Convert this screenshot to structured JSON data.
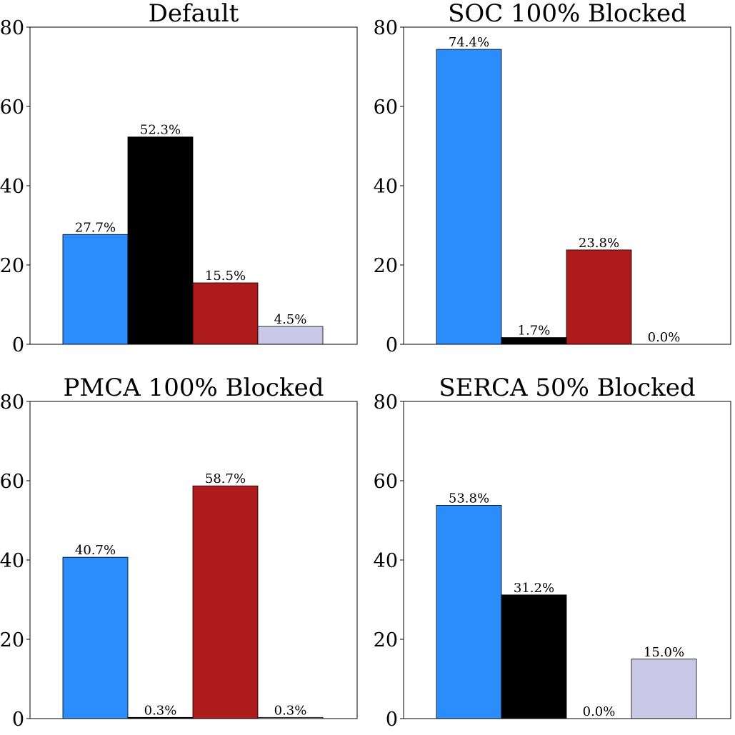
{
  "colors": {
    "blue": "#2b8cfb",
    "black": "#000000",
    "red": "#ae1b1b",
    "lavender": "#c9c8e6"
  },
  "chart_data": [
    {
      "type": "bar",
      "title": "Default",
      "xlabel": "",
      "ylabel": "",
      "ylim": [
        0,
        80
      ],
      "yticks": [
        "0",
        "20",
        "40",
        "60",
        "80"
      ],
      "categories": [
        "",
        "",
        "",
        ""
      ],
      "values": [
        27.7,
        52.3,
        15.5,
        4.5
      ],
      "labels": [
        "27.7%",
        "52.3%",
        "15.5%",
        "4.5%"
      ],
      "bar_colors": [
        "#2b8cfb",
        "#000000",
        "#ae1b1b",
        "#c9c8e6"
      ],
      "grid": false
    },
    {
      "type": "bar",
      "title": "SOC 100% Blocked",
      "xlabel": "",
      "ylabel": "",
      "ylim": [
        0,
        80
      ],
      "yticks": [
        "0",
        "20",
        "40",
        "60",
        "80"
      ],
      "categories": [
        "",
        "",
        "",
        ""
      ],
      "values": [
        74.4,
        1.7,
        23.8,
        0.0
      ],
      "labels": [
        "74.4%",
        "1.7%",
        "23.8%",
        "0.0%"
      ],
      "bar_colors": [
        "#2b8cfb",
        "#000000",
        "#ae1b1b",
        "#c9c8e6"
      ],
      "grid": false
    },
    {
      "type": "bar",
      "title": "PMCA 100% Blocked",
      "xlabel": "",
      "ylabel": "",
      "ylim": [
        0,
        80
      ],
      "yticks": [
        "0",
        "20",
        "40",
        "60",
        "80"
      ],
      "categories": [
        "",
        "",
        "",
        ""
      ],
      "values": [
        40.7,
        0.3,
        58.7,
        0.3
      ],
      "labels": [
        "40.7%",
        "0.3%",
        "58.7%",
        "0.3%"
      ],
      "bar_colors": [
        "#2b8cfb",
        "#000000",
        "#ae1b1b",
        "#c9c8e6"
      ],
      "grid": false
    },
    {
      "type": "bar",
      "title": "SERCA 50% Blocked",
      "xlabel": "",
      "ylabel": "",
      "ylim": [
        0,
        80
      ],
      "yticks": [
        "0",
        "20",
        "40",
        "60",
        "80"
      ],
      "categories": [
        "",
        "",
        "",
        ""
      ],
      "values": [
        53.8,
        31.2,
        0.0,
        15.0
      ],
      "labels": [
        "53.8%",
        "31.2%",
        "0.0%",
        "15.0%"
      ],
      "bar_colors": [
        "#2b8cfb",
        "#000000",
        "#ae1b1b",
        "#c9c8e6"
      ],
      "grid": false
    }
  ]
}
